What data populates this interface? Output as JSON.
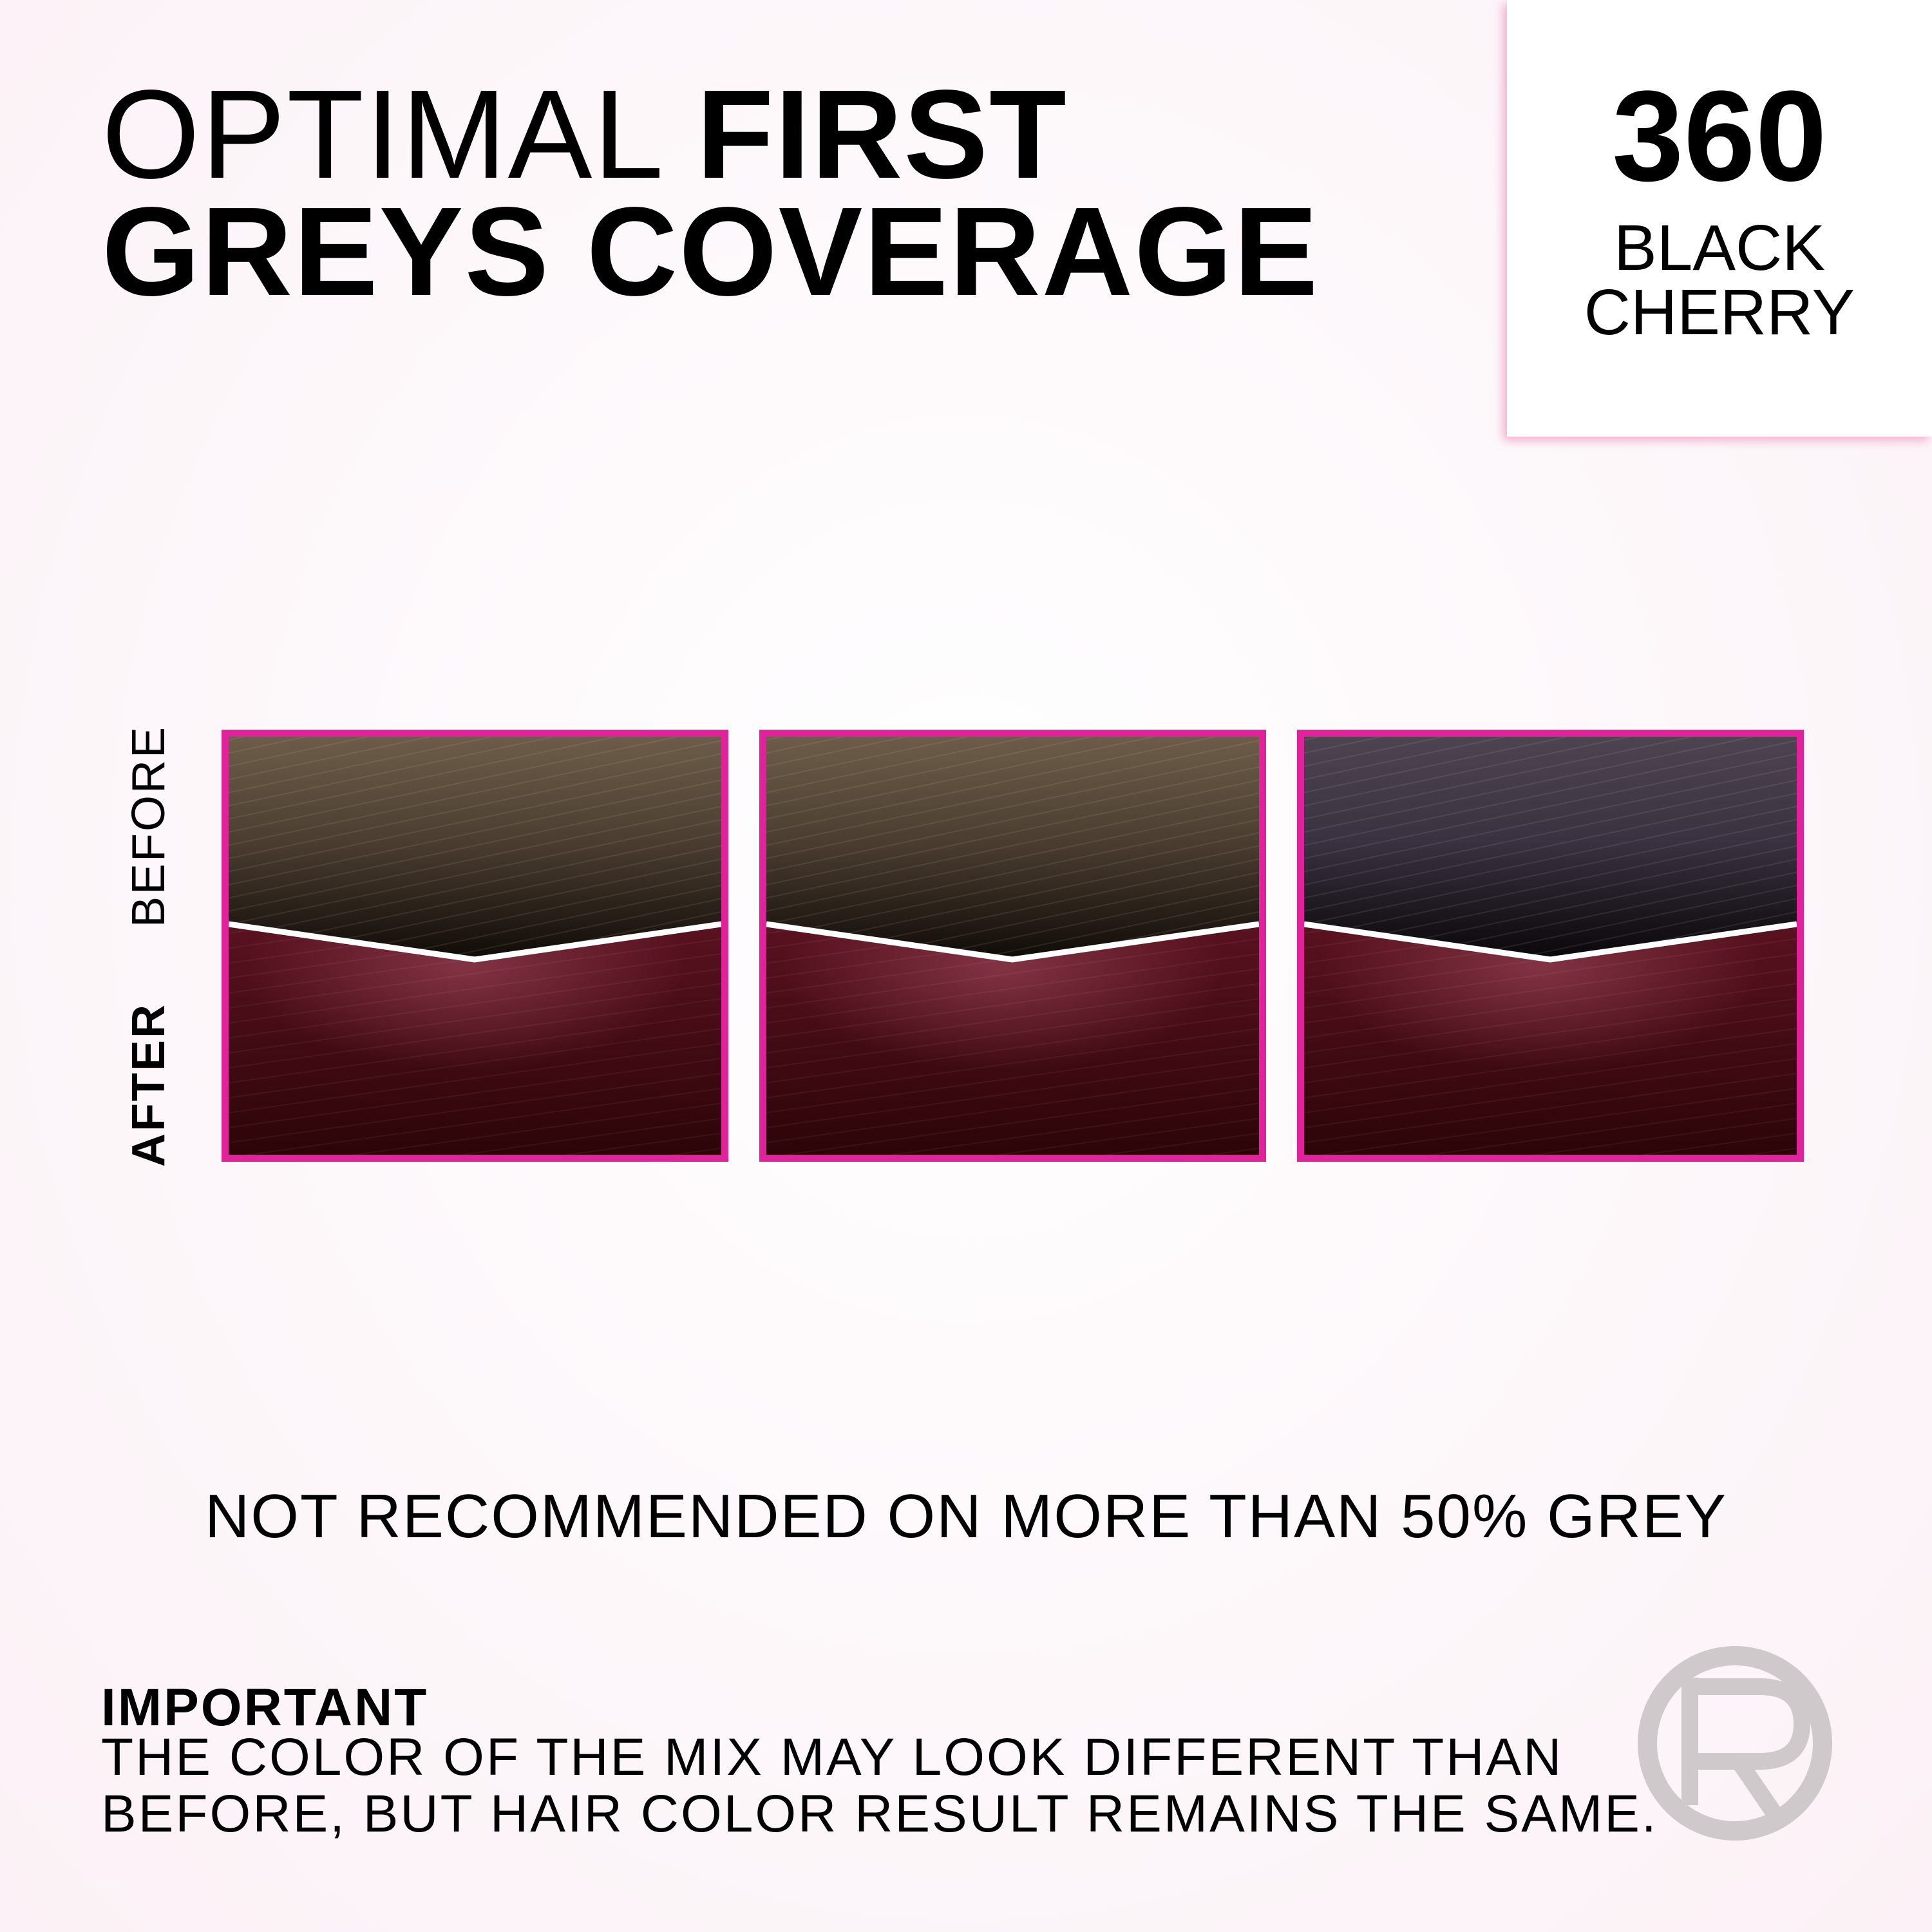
{
  "heading": {
    "light": "OPTIMAL",
    "bold_1": "FIRST",
    "bold_2": "GREYS COVERAGE"
  },
  "shade": {
    "number": "360",
    "name_line1": "BLACK",
    "name_line2": "CHERRY"
  },
  "labels": {
    "before": "BEFORE",
    "after": "AFTER"
  },
  "swatches": [
    {
      "before_tone": "light brown"
    },
    {
      "before_tone": "light brown"
    },
    {
      "before_tone": "dark violet-brown"
    }
  ],
  "colors": {
    "frame": "#e0239b",
    "shade_box_shadow": "#f096be",
    "logo": "#cfc9cc"
  },
  "notice": "NOT RECOMMENDED ON MORE THAN 50% GREY",
  "important": {
    "heading": "IMPORTANT",
    "line1": "THE COLOR OF THE MIX MAY LOOK DIFFERENT THAN",
    "line2": "BEFORE, BUT HAIR COLOR RESULT REMAINS THE SAME."
  },
  "logo_icon": "brand-r-circle-icon"
}
